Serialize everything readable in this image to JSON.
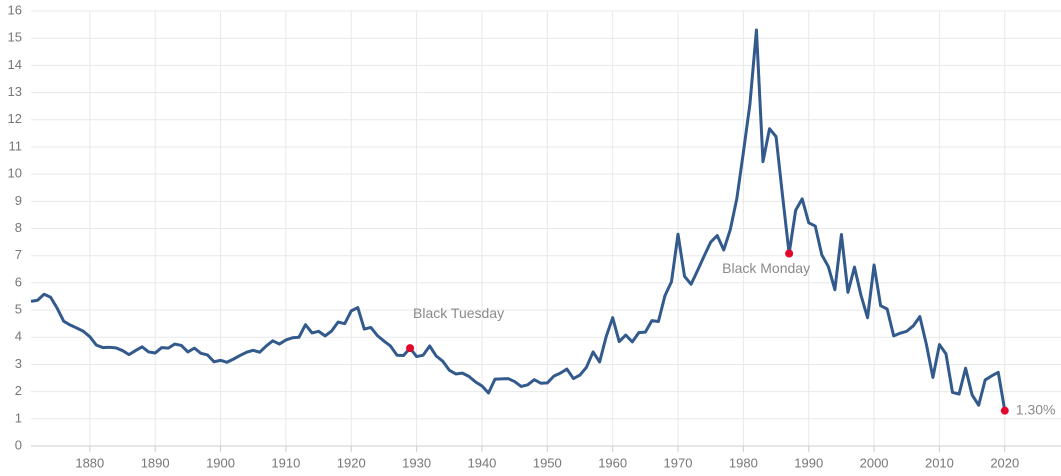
{
  "chart_data": {
    "type": "line",
    "x": [
      1871,
      1872,
      1873,
      1874,
      1875,
      1876,
      1877,
      1878,
      1879,
      1880,
      1881,
      1882,
      1883,
      1884,
      1885,
      1886,
      1887,
      1888,
      1889,
      1890,
      1891,
      1892,
      1893,
      1894,
      1895,
      1896,
      1897,
      1898,
      1899,
      1900,
      1901,
      1902,
      1903,
      1904,
      1905,
      1906,
      1907,
      1908,
      1909,
      1910,
      1911,
      1912,
      1913,
      1914,
      1915,
      1916,
      1917,
      1918,
      1919,
      1920,
      1921,
      1922,
      1923,
      1924,
      1925,
      1926,
      1927,
      1928,
      1929,
      1930,
      1931,
      1932,
      1933,
      1934,
      1935,
      1936,
      1937,
      1938,
      1939,
      1940,
      1941,
      1942,
      1943,
      1944,
      1945,
      1946,
      1947,
      1948,
      1949,
      1950,
      1951,
      1952,
      1953,
      1954,
      1955,
      1956,
      1957,
      1958,
      1959,
      1960,
      1961,
      1962,
      1963,
      1964,
      1965,
      1966,
      1967,
      1968,
      1969,
      1970,
      1971,
      1972,
      1973,
      1974,
      1975,
      1976,
      1977,
      1978,
      1979,
      1980,
      1981,
      1982,
      1983,
      1984,
      1985,
      1986,
      1987,
      1988,
      1989,
      1990,
      1991,
      1992,
      1993,
      1994,
      1995,
      1996,
      1997,
      1998,
      1999,
      2000,
      2001,
      2002,
      2003,
      2004,
      2005,
      2006,
      2007,
      2008,
      2009,
      2010,
      2011,
      2012,
      2013,
      2014,
      2015,
      2016,
      2017,
      2018,
      2019,
      2020
    ],
    "values": [
      5.32,
      5.36,
      5.58,
      5.47,
      5.07,
      4.59,
      4.45,
      4.34,
      4.22,
      4.02,
      3.71,
      3.62,
      3.63,
      3.61,
      3.51,
      3.36,
      3.51,
      3.65,
      3.46,
      3.42,
      3.62,
      3.6,
      3.75,
      3.7,
      3.46,
      3.6,
      3.41,
      3.35,
      3.1,
      3.15,
      3.08,
      3.2,
      3.33,
      3.45,
      3.52,
      3.45,
      3.68,
      3.87,
      3.75,
      3.9,
      3.98,
      4.0,
      4.46,
      4.16,
      4.22,
      4.05,
      4.23,
      4.56,
      4.5,
      4.97,
      5.09,
      4.3,
      4.36,
      4.06,
      3.86,
      3.68,
      3.34,
      3.33,
      3.6,
      3.29,
      3.34,
      3.68,
      3.31,
      3.12,
      2.79,
      2.65,
      2.68,
      2.56,
      2.36,
      2.21,
      1.95,
      2.46,
      2.47,
      2.48,
      2.37,
      2.19,
      2.25,
      2.44,
      2.31,
      2.32,
      2.57,
      2.68,
      2.83,
      2.48,
      2.61,
      2.9,
      3.46,
      3.09,
      4.02,
      4.72,
      3.84,
      4.08,
      3.83,
      4.17,
      4.19,
      4.61,
      4.58,
      5.53,
      6.04,
      7.79,
      6.24,
      5.95,
      6.46,
      6.99,
      7.5,
      7.74,
      7.21,
      7.96,
      9.1,
      10.8,
      12.57,
      15.3,
      10.46,
      11.67,
      11.38,
      9.19,
      7.08,
      8.67,
      9.09,
      8.21,
      8.09,
      7.03,
      6.6,
      5.75,
      7.78,
      5.65,
      6.58,
      5.54,
      4.72,
      6.66,
      5.16,
      5.04,
      4.05,
      4.15,
      4.22,
      4.42,
      4.76,
      3.74,
      2.52,
      3.73,
      3.39,
      1.97,
      1.91,
      2.86,
      1.88,
      1.5,
      2.43,
      2.58,
      2.71,
      1.3
    ],
    "color": "#335a8c",
    "marker_color": "#e2062c",
    "annotations": [
      {
        "x": 1929,
        "y": 3.6,
        "label": "Black Tuesday"
      },
      {
        "x": 1987,
        "y": 7.08,
        "label": "Black Monday"
      },
      {
        "x": 2020,
        "y": 1.3,
        "label": "1.30%"
      }
    ],
    "xlim": [
      1871,
      2028.6
    ],
    "xticks": [
      1880,
      1890,
      1900,
      1910,
      1920,
      1930,
      1940,
      1950,
      1960,
      1970,
      1980,
      1990,
      2000,
      2010,
      2020
    ],
    "ylim": [
      0,
      16
    ],
    "yticks": [
      0,
      1,
      2,
      3,
      4,
      5,
      6,
      7,
      8,
      9,
      10,
      11,
      12,
      13,
      14,
      15,
      16
    ],
    "grid": true
  }
}
